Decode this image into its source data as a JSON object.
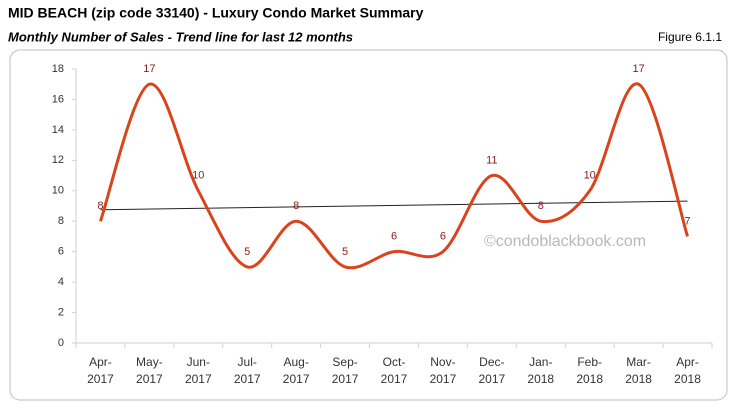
{
  "chart_data": {
    "type": "line",
    "title": "MID BEACH (zip code 33140) - Luxury Condo Market Summary",
    "subtitle": "Monthly Number of Sales - Trend line for last 12 months",
    "figure_label": "Figure 6.1.1",
    "watermark": "©condoblackbook.com",
    "categories": [
      "Apr-2017",
      "May-2017",
      "Jun-2017",
      "Jul-2017",
      "Aug-2017",
      "Sep-2017",
      "Oct-2017",
      "Nov-2017",
      "Dec-2017",
      "Jan-2018",
      "Feb-2018",
      "Mar-2018",
      "Apr-2018"
    ],
    "series": [
      {
        "name": "Monthly Number of Sales",
        "color": "#d9441c",
        "values": [
          8,
          17,
          10,
          5,
          8,
          5,
          6,
          6,
          11,
          8,
          10,
          17,
          7
        ]
      }
    ],
    "trendline": {
      "color": "#222222",
      "values": [
        8.75,
        9.32
      ]
    },
    "label_color": "#8b1a1a",
    "ylim": [
      0,
      18
    ],
    "yticks": [
      0,
      2,
      4,
      6,
      8,
      10,
      12,
      14,
      16,
      18
    ],
    "grid": false
  }
}
